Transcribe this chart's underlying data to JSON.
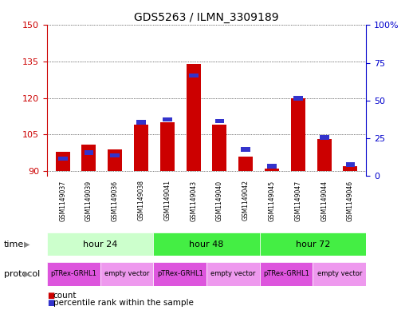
{
  "title": "GDS5263 / ILMN_3309189",
  "samples": [
    "GSM1149037",
    "GSM1149039",
    "GSM1149036",
    "GSM1149038",
    "GSM1149041",
    "GSM1149043",
    "GSM1149040",
    "GSM1149042",
    "GSM1149045",
    "GSM1149047",
    "GSM1149044",
    "GSM1149046"
  ],
  "count_values": [
    98,
    101,
    99,
    109,
    110,
    134,
    109,
    96,
    91,
    120,
    103,
    92
  ],
  "percentile_values": [
    10,
    14,
    12,
    34,
    36,
    65,
    35,
    16,
    5,
    50,
    24,
    6
  ],
  "ylim_left": [
    88,
    150
  ],
  "ylim_right": [
    0,
    100
  ],
  "yticks_left": [
    90,
    105,
    120,
    135,
    150
  ],
  "yticks_right": [
    0,
    25,
    50,
    75,
    100
  ],
  "bar_color_red": "#cc0000",
  "bar_color_blue": "#3333cc",
  "background_color": "#ffffff",
  "plot_bg_color": "#ffffff",
  "left_axis_color": "#cc0000",
  "right_axis_color": "#0000cc",
  "sample_bg_color": "#cccccc",
  "time_groups": [
    {
      "label": "hour 24",
      "start": 0,
      "end": 3,
      "color": "#ccffcc"
    },
    {
      "label": "hour 48",
      "start": 4,
      "end": 7,
      "color": "#44dd44"
    },
    {
      "label": "hour 72",
      "start": 8,
      "end": 11,
      "color": "#44dd44"
    }
  ],
  "protocol_groups": [
    {
      "label": "pTRex-GRHL1",
      "start": 0,
      "end": 1,
      "color": "#dd55dd"
    },
    {
      "label": "empty vector",
      "start": 2,
      "end": 3,
      "color": "#ee99ee"
    },
    {
      "label": "pTRex-GRHL1",
      "start": 4,
      "end": 5,
      "color": "#dd55dd"
    },
    {
      "label": "empty vector",
      "start": 6,
      "end": 7,
      "color": "#ee99ee"
    },
    {
      "label": "pTRex-GRHL1",
      "start": 8,
      "end": 9,
      "color": "#dd55dd"
    },
    {
      "label": "empty vector",
      "start": 10,
      "end": 11,
      "color": "#ee99ee"
    }
  ],
  "legend_items": [
    {
      "label": "count",
      "color": "#cc0000"
    },
    {
      "label": "percentile rank within the sample",
      "color": "#3333cc"
    }
  ],
  "time_label": "time",
  "protocol_label": "protocol"
}
